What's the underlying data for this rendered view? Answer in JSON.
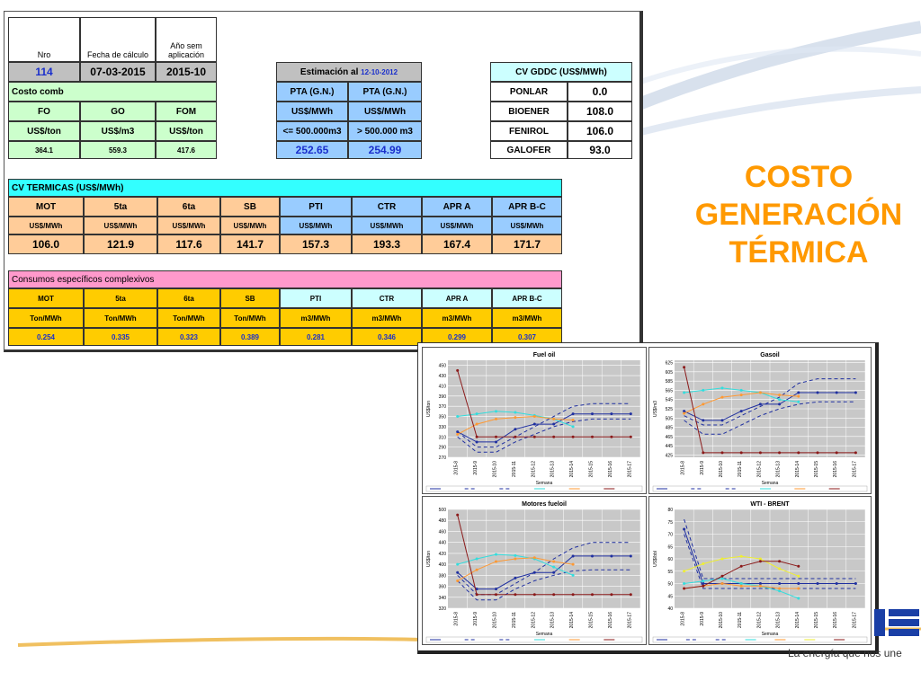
{
  "slide_title": [
    "COSTO",
    "GENERACIÓN",
    "TÉRMICA"
  ],
  "tagline": "La energía que nos une",
  "header": {
    "nro": "Nro",
    "fecha": "Fecha de cálculo",
    "anio": "Año sem aplicación",
    "nro_val": "114",
    "fecha_val": "07-03-2015",
    "anio_val": "2015-10"
  },
  "costo_comb": {
    "title": "Costo comb",
    "cols": [
      "FO",
      "GO",
      "FOM"
    ],
    "units": [
      "US$/ton",
      "US$/m3",
      "US$/ton"
    ],
    "vals": [
      "364.1",
      "559.3",
      "417.6"
    ]
  },
  "estimacion": {
    "title": "Estimación al",
    "date": "12-10-2012",
    "cols": [
      "PTA (G.N.)",
      "PTA (G.N.)"
    ],
    "units": [
      "US$/MWh",
      "US$/MWh"
    ],
    "ranges": [
      "<= 500.000m3",
      "> 500.000 m3"
    ],
    "vals": [
      "252.65",
      "254.99"
    ]
  },
  "gddc": {
    "title": "CV GDDC (US$/MWh)",
    "rows": [
      {
        "name": "PONLAR",
        "val": "0.0"
      },
      {
        "name": "BIOENER",
        "val": "108.0"
      },
      {
        "name": "FENIROL",
        "val": "106.0"
      },
      {
        "name": "GALOFER",
        "val": "93.0"
      }
    ]
  },
  "termicas": {
    "title": "CV TERMICAS (US$/MWh)",
    "cols": [
      "MOT",
      "5ta",
      "6ta",
      "SB",
      "PTI",
      "CTR",
      "APR A",
      "APR B-C"
    ],
    "unit": "US$/MWh",
    "vals": [
      "106.0",
      "121.9",
      "117.6",
      "141.7",
      "157.3",
      "193.3",
      "167.4",
      "171.7"
    ]
  },
  "consumos": {
    "title": "Consumos específicos complexivos",
    "cols": [
      "MOT",
      "5ta",
      "6ta",
      "SB",
      "PTI",
      "CTR",
      "APR A",
      "APR B-C"
    ],
    "units": [
      "Ton/MWh",
      "Ton/MWh",
      "Ton/MWh",
      "Ton/MWh",
      "m3/MWh",
      "m3/MWh",
      "m3/MWh",
      "m3/MWh"
    ],
    "vals": [
      "0.254",
      "0.335",
      "0.323",
      "0.389",
      "0.281",
      "0.346",
      "0.299",
      "0.307"
    ]
  },
  "chart_data": [
    {
      "type": "line",
      "title": "Fuel oil",
      "ylabel": "US$/ton",
      "xlabel": "Semana",
      "ylim": [
        270,
        460
      ],
      "yticks": [
        270,
        290,
        310,
        330,
        350,
        370,
        390,
        410,
        430,
        450
      ],
      "categories": [
        "2015-8",
        "2015-9",
        "2015-10",
        "2015-11",
        "2015-12",
        "2015-13",
        "2015-14",
        "2015-15",
        "2015-16",
        "2015-17"
      ],
      "series": [
        {
          "color": "#1f2fa0",
          "dash": "",
          "values": [
            320,
            300,
            300,
            325,
            335,
            335,
            355,
            355,
            355,
            355
          ]
        },
        {
          "color": "#1f2fa0",
          "dash": "4,3",
          "values": [
            320,
            290,
            290,
            310,
            330,
            350,
            370,
            375,
            375,
            375
          ]
        },
        {
          "color": "#1f2fa0",
          "dash": "4,3",
          "values": [
            310,
            280,
            280,
            300,
            315,
            330,
            340,
            345,
            345,
            345
          ]
        },
        {
          "color": "#33dddd",
          "dash": "",
          "values": [
            350,
            355,
            360,
            358,
            352,
            345,
            330,
            null,
            null,
            null
          ]
        },
        {
          "color": "#ff9933",
          "dash": "",
          "values": [
            315,
            335,
            345,
            348,
            350,
            345,
            343,
            null,
            null,
            null
          ]
        },
        {
          "color": "#8b1a1a",
          "dash": "",
          "values": [
            440,
            310,
            310,
            310,
            310,
            310,
            310,
            310,
            310,
            310
          ]
        }
      ]
    },
    {
      "type": "line",
      "title": "Gasoil",
      "ylabel": "US$/m3",
      "xlabel": "Semana",
      "ylim": [
        420,
        630
      ],
      "yticks": [
        425,
        445,
        465,
        485,
        505,
        525,
        545,
        565,
        585,
        605,
        625
      ],
      "categories": [
        "2015-8",
        "2015-9",
        "2015-10",
        "2015-11",
        "2015-12",
        "2015-13",
        "2015-14",
        "2015-15",
        "2015-16",
        "2015-17"
      ],
      "series": [
        {
          "color": "#1f2fa0",
          "dash": "",
          "values": [
            520,
            500,
            500,
            520,
            535,
            535,
            560,
            560,
            560,
            560
          ]
        },
        {
          "color": "#1f2fa0",
          "dash": "4,3",
          "values": [
            510,
            490,
            490,
            510,
            530,
            550,
            580,
            590,
            590,
            590
          ]
        },
        {
          "color": "#1f2fa0",
          "dash": "4,3",
          "values": [
            500,
            470,
            470,
            490,
            510,
            525,
            535,
            540,
            540,
            540
          ]
        },
        {
          "color": "#33dddd",
          "dash": "",
          "values": [
            560,
            565,
            570,
            565,
            560,
            545,
            540,
            null,
            null,
            null
          ]
        },
        {
          "color": "#ff9933",
          "dash": "",
          "values": [
            515,
            535,
            550,
            555,
            560,
            555,
            552,
            null,
            null,
            null
          ]
        },
        {
          "color": "#8b1a1a",
          "dash": "",
          "values": [
            615,
            430,
            430,
            430,
            430,
            430,
            430,
            430,
            430,
            430
          ]
        }
      ]
    },
    {
      "type": "line",
      "title": "Motores fueloil",
      "ylabel": "US$/ton",
      "xlabel": "Semana",
      "ylim": [
        320,
        500
      ],
      "yticks": [
        320,
        340,
        360,
        380,
        400,
        420,
        440,
        460,
        480,
        500
      ],
      "categories": [
        "2015-8",
        "2015-9",
        "2015-10",
        "2015-11",
        "2015-12",
        "2015-13",
        "2015-14",
        "2015-15",
        "2015-16",
        "2015-17"
      ],
      "series": [
        {
          "color": "#1f2fa0",
          "dash": "",
          "values": [
            385,
            355,
            355,
            375,
            385,
            385,
            415,
            415,
            415,
            415
          ]
        },
        {
          "color": "#1f2fa0",
          "dash": "4,3",
          "values": [
            380,
            345,
            345,
            365,
            385,
            410,
            430,
            440,
            440,
            440
          ]
        },
        {
          "color": "#1f2fa0",
          "dash": "4,3",
          "values": [
            370,
            335,
            335,
            355,
            370,
            380,
            388,
            390,
            390,
            390
          ]
        },
        {
          "color": "#33dddd",
          "dash": "",
          "values": [
            400,
            410,
            418,
            416,
            410,
            395,
            380,
            null,
            null,
            null
          ]
        },
        {
          "color": "#ff9933",
          "dash": "",
          "values": [
            370,
            390,
            405,
            410,
            412,
            405,
            400,
            null,
            null,
            null
          ]
        },
        {
          "color": "#8b1a1a",
          "dash": "",
          "values": [
            490,
            345,
            345,
            345,
            345,
            345,
            345,
            345,
            345,
            345
          ]
        }
      ]
    },
    {
      "type": "line",
      "title": "WTI - BRENT",
      "ylabel": "US$/bbl",
      "xlabel": "Semana",
      "ylim": [
        40,
        80
      ],
      "yticks": [
        40,
        45,
        50,
        55,
        60,
        65,
        70,
        75,
        80
      ],
      "categories": [
        "2015-8",
        "2015-9",
        "2015-10",
        "2015-11",
        "2015-12",
        "2015-13",
        "2015-14",
        "2015-15",
        "2015-16",
        "2015-17"
      ],
      "series": [
        {
          "color": "#1f2fa0",
          "dash": "",
          "values": [
            72,
            50,
            50,
            50,
            50,
            50,
            50,
            50,
            50,
            50
          ]
        },
        {
          "color": "#1f2fa0",
          "dash": "4,3",
          "values": [
            76,
            52,
            52,
            52,
            52,
            52,
            52,
            52,
            52,
            52
          ]
        },
        {
          "color": "#1f2fa0",
          "dash": "4,3",
          "values": [
            70,
            48,
            48,
            48,
            48,
            48,
            48,
            48,
            48,
            48
          ]
        },
        {
          "color": "#33dddd",
          "dash": "",
          "values": [
            50,
            51,
            52,
            50,
            49,
            47,
            44,
            null,
            null,
            null
          ]
        },
        {
          "color": "#ff9933",
          "dash": "",
          "values": [
            48,
            49,
            50,
            49,
            49,
            48,
            48,
            null,
            null,
            null
          ]
        },
        {
          "color": "#eeee33",
          "dash": "",
          "values": [
            55,
            58,
            60,
            61,
            60,
            56,
            53,
            null,
            null,
            null
          ]
        },
        {
          "color": "#8b1a1a",
          "dash": "",
          "values": [
            48,
            49,
            53,
            57,
            59,
            59,
            57,
            null,
            null,
            null
          ]
        }
      ]
    }
  ]
}
